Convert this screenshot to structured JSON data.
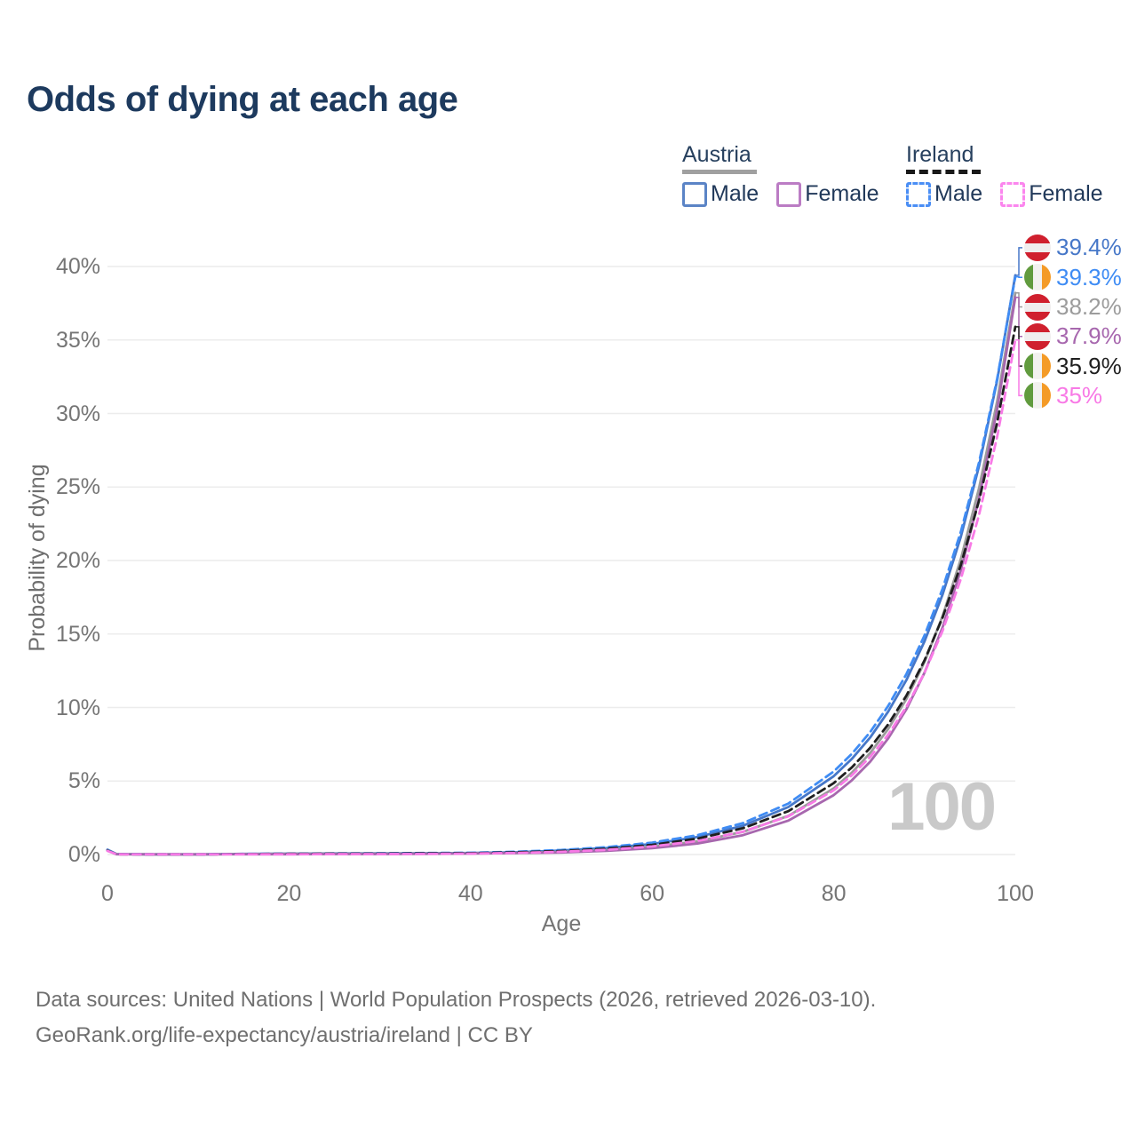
{
  "title": "Odds of dying at each age",
  "watermark": "100",
  "legend": {
    "groups": [
      {
        "country": "Austria",
        "line_style": "solid",
        "underline_color": "#a0a0a0",
        "items": [
          {
            "label": "Male",
            "box_color": "#5b84c6"
          },
          {
            "label": "Female",
            "box_color": "#bb7cc4"
          }
        ]
      },
      {
        "country": "Ireland",
        "line_style": "dashed",
        "underline_color": "#191919",
        "items": [
          {
            "label": "Male",
            "box_color": "#4a8ef5"
          },
          {
            "label": "Female",
            "box_color": "#fb86ee"
          }
        ]
      }
    ]
  },
  "chart_data": {
    "type": "line",
    "title": "Odds of dying at each age",
    "xlabel": "Age",
    "ylabel": "Probability of dying",
    "xlim": [
      0,
      100
    ],
    "ylim": [
      0,
      41
    ],
    "grid": "horizontal",
    "gridline_color": "#ececec",
    "legend_position": "top-right",
    "x_ticks": [
      {
        "label": "0",
        "value": 0
      },
      {
        "label": "20",
        "value": 20
      },
      {
        "label": "40",
        "value": 40
      },
      {
        "label": "60",
        "value": 60
      },
      {
        "label": "80",
        "value": 80
      },
      {
        "label": "100",
        "value": 100
      }
    ],
    "y_ticks": [
      {
        "label": "0%",
        "value": 0
      },
      {
        "label": "5%",
        "value": 5
      },
      {
        "label": "10%",
        "value": 10
      },
      {
        "label": "15%",
        "value": 15
      },
      {
        "label": "20%",
        "value": 20
      },
      {
        "label": "25%",
        "value": 25
      },
      {
        "label": "30%",
        "value": 30
      },
      {
        "label": "35%",
        "value": 35
      },
      {
        "label": "40%",
        "value": 40
      }
    ],
    "ages": [
      0,
      1,
      5,
      10,
      15,
      20,
      25,
      30,
      35,
      40,
      45,
      50,
      55,
      60,
      65,
      70,
      75,
      80,
      82,
      84,
      86,
      88,
      90,
      92,
      94,
      96,
      98,
      100
    ],
    "series": [
      {
        "name": "Austria Male",
        "country": "Austria",
        "sex": "Male",
        "color": "#4677c8",
        "dashed": false,
        "flag": "at",
        "end_label": "39.4%",
        "end_value": 39.4,
        "values": [
          0.33,
          0.03,
          0.01,
          0.01,
          0.04,
          0.06,
          0.07,
          0.08,
          0.09,
          0.1,
          0.16,
          0.27,
          0.44,
          0.72,
          1.19,
          1.96,
          3.23,
          5.33,
          6.51,
          7.95,
          9.72,
          11.87,
          14.5,
          17.7,
          21.62,
          26.41,
          32.26,
          39.4
        ]
      },
      {
        "name": "Austria",
        "country": "Austria",
        "sex": "Both",
        "color": "#9c9c9c",
        "dashed": false,
        "flag": "at",
        "end_label": "38.2%",
        "end_value": 38.2,
        "values": [
          0.31,
          0.03,
          0.01,
          0.01,
          0.03,
          0.05,
          0.05,
          0.06,
          0.07,
          0.09,
          0.12,
          0.18,
          0.31,
          0.53,
          0.9,
          1.54,
          2.63,
          4.5,
          5.57,
          6.9,
          8.54,
          10.58,
          13.1,
          16.23,
          20.1,
          24.9,
          30.84,
          38.2
        ]
      },
      {
        "name": "Austria Female",
        "country": "Austria",
        "sex": "Female",
        "color": "#a767ae",
        "dashed": false,
        "flag": "at",
        "end_label": "37.9%",
        "end_value": 37.9,
        "values": [
          0.28,
          0.02,
          0.01,
          0.01,
          0.02,
          0.02,
          0.03,
          0.03,
          0.05,
          0.07,
          0.1,
          0.14,
          0.25,
          0.43,
          0.75,
          1.32,
          2.31,
          4.04,
          5.05,
          6.31,
          7.9,
          9.88,
          12.37,
          15.47,
          19.36,
          24.21,
          30.29,
          37.9
        ]
      },
      {
        "name": "Ireland Male",
        "country": "Ireland",
        "sex": "Male",
        "color": "#3f8cf4",
        "dashed": true,
        "flag": "ie",
        "end_label": "39.3%",
        "end_value": 39.3,
        "values": [
          0.3,
          0.03,
          0.01,
          0.01,
          0.04,
          0.06,
          0.07,
          0.08,
          0.1,
          0.12,
          0.19,
          0.31,
          0.5,
          0.81,
          1.32,
          2.14,
          3.47,
          5.65,
          6.85,
          8.32,
          10.11,
          12.27,
          14.9,
          18.09,
          21.96,
          26.66,
          32.37,
          39.3
        ]
      },
      {
        "name": "Ireland",
        "country": "Ireland",
        "sex": "Both",
        "color": "#1f1f1f",
        "dashed": true,
        "flag": "ie",
        "end_label": "35.9%",
        "end_value": 35.9,
        "values": [
          0.27,
          0.02,
          0.01,
          0.01,
          0.03,
          0.05,
          0.06,
          0.06,
          0.08,
          0.09,
          0.15,
          0.24,
          0.4,
          0.66,
          1.08,
          1.79,
          2.95,
          4.86,
          5.93,
          7.25,
          8.85,
          10.81,
          13.21,
          16.13,
          19.7,
          24.06,
          29.39,
          35.9
        ]
      },
      {
        "name": "Ireland Female",
        "country": "Ireland",
        "sex": "Female",
        "color": "#f87ae6",
        "dashed": true,
        "flag": "ie",
        "end_label": "35%",
        "end_value": 35.0,
        "values": [
          0.25,
          0.02,
          0.01,
          0.01,
          0.02,
          0.02,
          0.03,
          0.03,
          0.04,
          0.06,
          0.11,
          0.19,
          0.32,
          0.55,
          0.92,
          1.55,
          2.6,
          4.37,
          5.39,
          6.63,
          8.16,
          10.05,
          12.37,
          15.23,
          18.75,
          23.09,
          28.43,
          35.0
        ]
      }
    ],
    "hover_age_indicator": "100"
  },
  "footer": {
    "line1": "Data sources: United Nations | World Population Prospects (2026, retrieved 2026-03-10).",
    "line2": "GeoRank.org/life-expectancy/austria/ireland | CC BY"
  }
}
